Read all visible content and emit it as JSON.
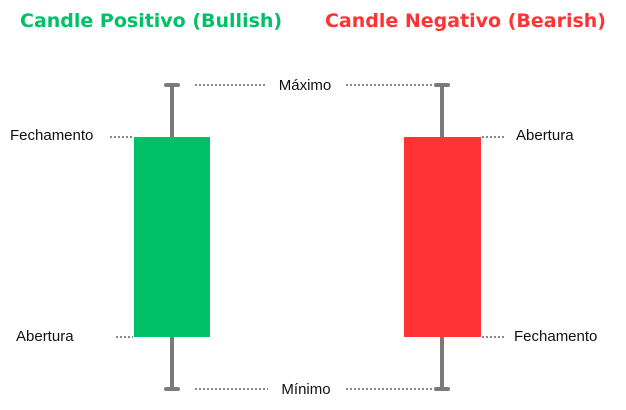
{
  "bullish": {
    "title": "Candle Positivo (Bullish)",
    "label_top": "Fechamento",
    "label_bottom": "Abertura",
    "color": "#00c068"
  },
  "bearish": {
    "title": "Candle Negativo (Bearish)",
    "label_top": "Abertura",
    "label_bottom": "Fechamento",
    "color": "#ff3333"
  },
  "shared": {
    "max_label": "Máximo",
    "min_label": "Mínimo",
    "wick_color": "#7a7a7a"
  }
}
